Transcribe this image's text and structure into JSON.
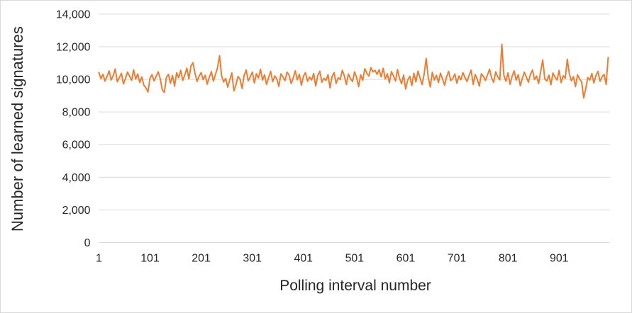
{
  "chart_data": {
    "type": "line",
    "title": "",
    "xlabel": "Polling interval number",
    "ylabel": "Number of learned signatures",
    "xlim": [
      1,
      1000
    ],
    "ylim": [
      0,
      14000
    ],
    "grid": "horizontal gridlines only",
    "legend": "none",
    "colors": {
      "line": "#ED7D31",
      "gridline": "#D9D9D9",
      "chart_border": "#D9D9D9",
      "text": "#262626",
      "background": "#FFFFFF"
    },
    "xticks": {
      "values": [
        1,
        101,
        201,
        301,
        401,
        501,
        601,
        701,
        801,
        901
      ],
      "labels": [
        "1",
        "101",
        "201",
        "301",
        "401",
        "501",
        "601",
        "701",
        "801",
        "901"
      ]
    },
    "yticks": {
      "values": [
        0,
        2000,
        4000,
        6000,
        8000,
        10000,
        12000,
        14000
      ],
      "labels": [
        "0",
        "2,000",
        "4,000",
        "6,000",
        "8,000",
        "10,000",
        "12,000",
        "14,000"
      ]
    },
    "series": [
      {
        "name": "Number of learned signatures",
        "color": "#ED7D31",
        "line_width": 2,
        "x_start": 1,
        "x_step": 4,
        "summary": "Noisy series fluctuating around ~10,100 (range mostly 9,400-10,900); spike to ~12,150 near interval 790, spikes ~11,200-11,450 near intervals 240, 645, 870, 915 and 1000; deep dip to ~8,860 near interval 950",
        "values": [
          10420,
          10050,
          10310,
          9890,
          10180,
          10520,
          9960,
          10230,
          10640,
          9850,
          10110,
          10370,
          9720,
          10060,
          10450,
          10190,
          9940,
          10580,
          10020,
          10330,
          9810,
          10150,
          9640,
          9480,
          9230,
          10070,
          10290,
          9900,
          10180,
          10460,
          10040,
          9350,
          9200,
          10120,
          10310,
          9760,
          10240,
          9580,
          10410,
          10100,
          10560,
          9930,
          10270,
          10690,
          10030,
          10820,
          11020,
          10360,
          9870,
          10190,
          10420,
          9980,
          10250,
          9710,
          10130,
          10470,
          9890,
          10300,
          10710,
          11450,
          10210,
          9840,
          10060,
          9520,
          9980,
          10390,
          9290,
          9660,
          10180,
          10020,
          9440,
          10240,
          10570,
          9910,
          10160,
          10450,
          9780,
          10350,
          10080,
          10620,
          9950,
          10280,
          9690,
          10110,
          10490,
          9860,
          10210,
          10030,
          9570,
          10340,
          10150,
          9920,
          10440,
          10260,
          9740,
          10080,
          10530,
          9970,
          10310,
          9640,
          10190,
          10420,
          9880,
          10140,
          9960,
          10360,
          9590,
          10230,
          10500,
          9820,
          10070,
          9930,
          10290,
          9480,
          10170,
          10410,
          9750,
          10100,
          9990,
          10550,
          10220,
          9680,
          10330,
          10040,
          9870,
          10460,
          10120,
          9560,
          10280,
          9940,
          10650,
          10380,
          10200,
          10720,
          10460,
          10550,
          10310,
          10590,
          10150,
          10680,
          10020,
          10340,
          9790,
          10480,
          10210,
          9900,
          10600,
          10060,
          9730,
          10270,
          9410,
          9950,
          10190,
          9620,
          10370,
          9850,
          10510,
          10090,
          9680,
          10300,
          11280,
          10140,
          9530,
          10430,
          9960,
          10250,
          9810,
          10380,
          10020,
          9640,
          10160,
          10490,
          9920,
          10050,
          10330,
          9760,
          10210,
          9980,
          10420,
          10110,
          9870,
          10240,
          10560,
          9690,
          10300,
          10000,
          9590,
          10350,
          10180,
          9930,
          10270,
          10620,
          10080,
          9820,
          10460,
          10150,
          9970,
          12150,
          10240,
          9880,
          10400,
          9700,
          10180,
          10520,
          9950,
          10290,
          9610,
          10060,
          10440,
          10120,
          9830,
          10310,
          10570,
          9990,
          10200,
          9740,
          10480,
          11190,
          10030,
          9900,
          10260,
          9670,
          10390,
          10140,
          9960,
          10550,
          9800,
          10220,
          10070,
          11230,
          10340,
          9910,
          10170,
          9560,
          10280,
          10020,
          9850,
          8860,
          9420,
          10110,
          9950,
          10360,
          9780,
          10230,
          10490,
          9880,
          10150,
          10310,
          9690,
          11350
        ]
      }
    ]
  }
}
